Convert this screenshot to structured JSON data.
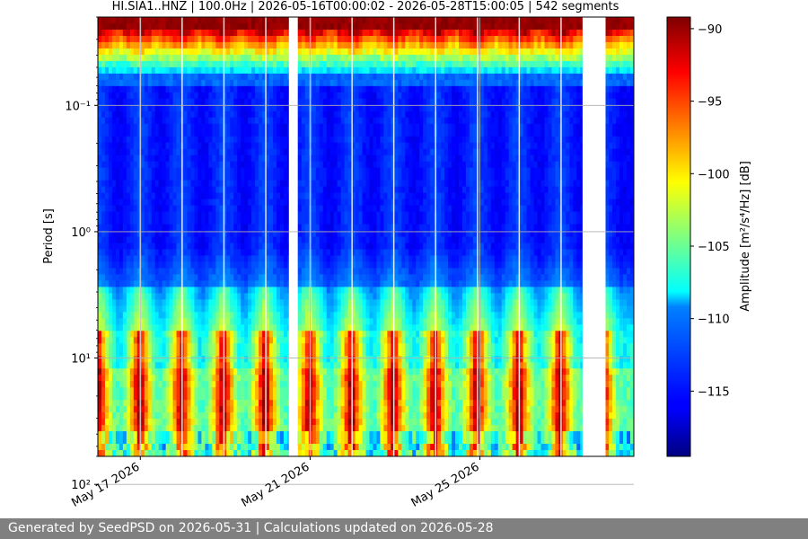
{
  "chart_data": {
    "type": "heatmap",
    "title": "HI.SIA1..HNZ | 100.0Hz | 2026-05-16T00:00:02 - 2026-05-28T15:00:05 | 542 segments",
    "ylabel": "Period [s]",
    "y_scale": "log",
    "y_inverted": true,
    "y_range": [
      0.02,
      60
    ],
    "y_ticks": [
      {
        "value": 0.1,
        "label": "10⁻¹"
      },
      {
        "value": 1,
        "label": "10⁰"
      },
      {
        "value": 10,
        "label": "10¹"
      },
      {
        "value": 100,
        "label": "10²"
      }
    ],
    "x_range": [
      "2026-05-16T00:00:02",
      "2026-05-28T15:00:05"
    ],
    "x_ticks": [
      {
        "value": "2026-05-17",
        "label": "May 17 2026"
      },
      {
        "value": "2026-05-21",
        "label": "May 21 2026"
      },
      {
        "value": "2026-05-25",
        "label": "May 25 2026"
      }
    ],
    "colorbar": {
      "label": "Amplitude [m²/s⁴/Hz] [dB]",
      "colormap": "jet",
      "range": [
        -119.5,
        -89.2
      ],
      "ticks": [
        -90,
        -95,
        -100,
        -105,
        -110,
        -115
      ]
    },
    "gaps": [
      [
        "2026-05-20T12:00:00",
        "2026-05-20T17:00:00"
      ],
      [
        "2026-05-27T10:00:00",
        "2026-05-27T23:00:00"
      ]
    ],
    "grid": true,
    "segments": 542
  },
  "footer": {
    "text": "Generated by SeedPSD on 2026-05-31 | Calculations updated on 2026-05-28"
  }
}
